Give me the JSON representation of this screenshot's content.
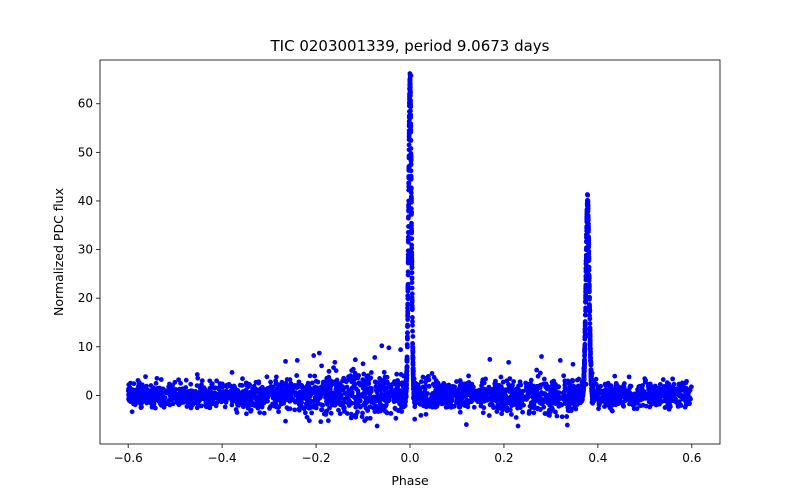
{
  "chart_data": {
    "type": "scatter",
    "title": "TIC 0203001339, period 9.0673 days",
    "xlabel": "Phase",
    "ylabel": "Normalized PDC flux",
    "xlim": [
      -0.66,
      0.66
    ],
    "ylim": [
      -10,
      69
    ],
    "xticks": [
      -0.6,
      -0.4,
      -0.2,
      0.0,
      0.2,
      0.4,
      0.6
    ],
    "xtick_labels": [
      "−0.6",
      "−0.4",
      "−0.2",
      "0.0",
      "0.2",
      "0.4",
      "0.6"
    ],
    "yticks": [
      0,
      10,
      20,
      30,
      40,
      50,
      60
    ],
    "ytick_labels": [
      "0",
      "10",
      "20",
      "30",
      "40",
      "50",
      "60"
    ],
    "grid": false,
    "marker_color": "#0000ff",
    "phase_range": [
      -0.6,
      0.6
    ],
    "baseline": 0,
    "noise_sigma": 1.3,
    "peaks": [
      {
        "name": "primary",
        "phase": 0.0,
        "amplitude": 64,
        "width": 0.003
      },
      {
        "name": "secondary",
        "phase": 0.378,
        "amplitude": 39.5,
        "width": 0.0035
      }
    ],
    "outliers": [
      {
        "x": -0.193,
        "y": 8.7
      },
      {
        "x": -0.205,
        "y": 8.2
      },
      {
        "x": -0.24,
        "y": 7.2
      },
      {
        "x": -0.265,
        "y": 7.0
      },
      {
        "x": -0.16,
        "y": 6.8
      },
      {
        "x": -0.06,
        "y": 10.2
      },
      {
        "x": -0.045,
        "y": 9.8
      },
      {
        "x": -0.02,
        "y": 9.4
      },
      {
        "x": -0.075,
        "y": 7.8
      },
      {
        "x": -0.1,
        "y": 6.5
      },
      {
        "x": 0.17,
        "y": 7.4
      },
      {
        "x": 0.21,
        "y": 6.8
      },
      {
        "x": 0.28,
        "y": 8.0
      },
      {
        "x": 0.32,
        "y": 7.2
      },
      {
        "x": 0.347,
        "y": 6.4
      },
      {
        "x": 0.375,
        "y": 2.3
      },
      {
        "x": 0.002,
        "y": 65.8
      },
      {
        "x": -0.07,
        "y": -6.3
      },
      {
        "x": 0.12,
        "y": -6.0
      },
      {
        "x": 0.23,
        "y": -6.3
      },
      {
        "x": 0.335,
        "y": -6.1
      },
      {
        "x": 0.01,
        "y": -4.9
      },
      {
        "x": -0.265,
        "y": -5.3
      },
      {
        "x": -0.19,
        "y": -5.4
      }
    ]
  }
}
